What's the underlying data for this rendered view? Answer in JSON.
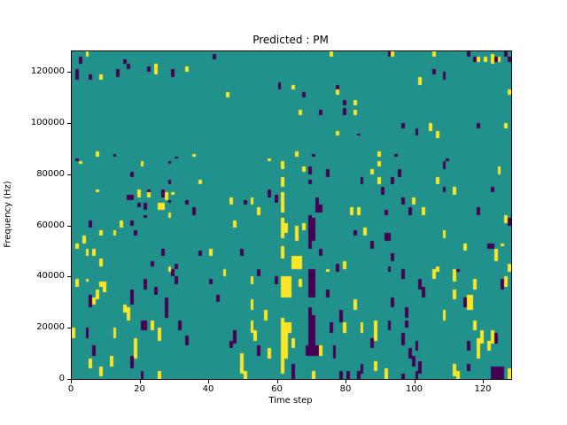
{
  "chart_data": {
    "type": "heatmap",
    "title": "Predicted : PM",
    "xlabel": "Time step",
    "ylabel": "Frequency (Hz)",
    "colormap": "viridis",
    "grid_size": [
      128,
      128
    ],
    "x_range": [
      0,
      128
    ],
    "y_range_hz": [
      0,
      128000
    ],
    "legend": "none",
    "grid": false,
    "colors": {
      "background_value": "#21918c",
      "max": "#fde725",
      "min": "#440154",
      "spine": "#000000",
      "figure_background": "#ffffff"
    },
    "cells_yellow": [
      [
        4,
        126,
        2
      ],
      [
        24,
        119,
        4
      ],
      [
        33,
        120,
        2
      ],
      [
        8,
        117,
        2
      ],
      [
        7,
        87,
        2
      ],
      [
        35,
        87,
        1
      ],
      [
        75,
        126,
        2
      ],
      [
        64,
        113,
        2
      ],
      [
        45,
        110,
        2
      ],
      [
        77,
        111,
        2
      ],
      [
        82,
        107,
        2
      ],
      [
        66,
        103,
        2
      ],
      [
        82,
        103,
        2
      ],
      [
        77,
        95,
        2
      ],
      [
        65,
        87,
        2
      ],
      [
        57,
        85,
        1
      ],
      [
        93,
        126,
        2
      ],
      [
        105,
        126,
        2
      ],
      [
        122,
        123,
        4
      ],
      [
        118,
        124,
        2
      ],
      [
        120,
        124,
        2
      ],
      [
        124,
        124,
        2
      ],
      [
        101,
        115,
        3
      ],
      [
        104,
        97,
        3
      ],
      [
        106,
        94,
        3
      ],
      [
        126,
        98,
        2
      ],
      [
        89,
        87,
        2
      ],
      [
        127,
        111,
        2
      ],
      [
        2,
        84,
        1
      ],
      [
        20,
        83,
        2
      ],
      [
        7,
        73,
        1
      ],
      [
        19,
        71,
        3
      ],
      [
        22,
        71,
        2
      ],
      [
        27,
        70,
        3
      ],
      [
        29,
        72,
        1
      ],
      [
        37,
        76,
        2
      ],
      [
        25,
        66,
        3,
        2
      ],
      [
        28,
        63,
        2
      ],
      [
        14,
        59,
        3
      ],
      [
        8,
        56,
        2
      ],
      [
        12,
        56,
        2
      ],
      [
        3,
        53,
        3
      ],
      [
        1,
        51,
        2
      ],
      [
        4,
        48,
        3
      ],
      [
        6,
        48,
        3
      ],
      [
        8,
        44,
        3
      ],
      [
        28,
        42,
        2
      ],
      [
        40,
        48,
        3
      ],
      [
        61,
        82,
        3
      ],
      [
        61,
        75,
        4
      ],
      [
        61,
        65,
        8
      ],
      [
        61,
        55,
        8
      ],
      [
        61,
        47,
        5
      ],
      [
        62,
        57,
        4
      ],
      [
        67,
        81,
        2
      ],
      [
        87,
        80,
        2
      ],
      [
        46,
        68,
        3
      ],
      [
        52,
        68,
        3
      ],
      [
        54,
        64,
        3
      ],
      [
        81,
        64,
        3
      ],
      [
        83,
        64,
        3
      ],
      [
        47,
        59,
        3
      ],
      [
        67,
        58,
        3
      ],
      [
        65,
        54,
        6
      ],
      [
        85,
        56,
        3
      ],
      [
        64,
        43,
        5,
        3
      ],
      [
        79,
        43,
        3
      ],
      [
        89,
        83,
        2
      ],
      [
        89,
        76,
        3
      ],
      [
        106,
        76,
        3
      ],
      [
        111,
        72,
        3
      ],
      [
        124,
        80,
        3
      ],
      [
        99,
        68,
        3
      ],
      [
        102,
        64,
        3
      ],
      [
        126,
        61,
        3
      ],
      [
        108,
        55,
        3
      ],
      [
        114,
        50,
        3
      ],
      [
        123,
        46,
        5
      ],
      [
        125,
        52,
        1
      ],
      [
        106,
        42,
        2
      ],
      [
        127,
        42,
        3
      ],
      [
        1,
        36,
        3
      ],
      [
        4,
        38,
        1
      ],
      [
        8,
        36,
        2
      ],
      [
        9,
        34,
        4
      ],
      [
        7,
        31,
        4
      ],
      [
        6,
        29,
        3
      ],
      [
        15,
        26,
        3
      ],
      [
        16,
        23,
        5
      ],
      [
        23,
        19,
        4
      ],
      [
        25,
        15,
        5
      ],
      [
        0,
        16,
        4
      ],
      [
        12,
        16,
        4
      ],
      [
        18,
        8,
        8
      ],
      [
        5,
        4,
        4
      ],
      [
        11,
        5,
        4
      ],
      [
        8,
        1,
        4
      ],
      [
        25,
        0,
        3
      ],
      [
        44,
        40,
        3
      ],
      [
        74,
        42,
        1
      ],
      [
        52,
        37,
        3
      ],
      [
        61,
        32,
        8,
        3
      ],
      [
        66,
        36,
        3
      ],
      [
        52,
        27,
        4
      ],
      [
        56,
        23,
        4
      ],
      [
        61,
        2,
        22
      ],
      [
        62,
        8,
        14
      ],
      [
        63,
        18,
        4
      ],
      [
        64,
        12,
        4
      ],
      [
        52,
        18,
        5
      ],
      [
        53,
        15,
        4
      ],
      [
        72,
        9,
        4
      ],
      [
        49,
        6,
        4
      ],
      [
        57,
        8,
        4
      ],
      [
        49,
        2,
        4
      ],
      [
        50,
        0,
        3
      ],
      [
        70,
        0,
        3
      ],
      [
        79,
        18,
        4
      ],
      [
        82,
        27,
        4
      ],
      [
        84,
        18,
        4
      ],
      [
        105,
        39,
        4
      ],
      [
        111,
        38,
        5
      ],
      [
        117,
        35,
        4
      ],
      [
        126,
        36,
        4
      ],
      [
        111,
        31,
        4
      ],
      [
        115,
        27,
        6,
        2
      ],
      [
        108,
        23,
        4
      ],
      [
        88,
        15,
        8
      ],
      [
        117,
        19,
        4
      ],
      [
        119,
        14,
        5
      ],
      [
        122,
        14,
        5
      ],
      [
        121,
        11,
        4
      ],
      [
        118,
        8,
        8
      ],
      [
        88,
        3,
        4
      ],
      [
        91,
        0,
        4
      ],
      [
        111,
        1,
        5
      ],
      [
        112,
        0,
        3
      ],
      [
        127,
        0,
        4
      ]
    ],
    "cells_purple": [
      [
        41,
        125,
        2
      ],
      [
        2,
        123,
        3
      ],
      [
        15,
        123,
        2
      ],
      [
        13,
        118,
        3
      ],
      [
        16,
        121,
        2
      ],
      [
        22,
        120,
        2
      ],
      [
        29,
        118,
        3
      ],
      [
        1,
        117,
        4
      ],
      [
        5,
        117,
        2
      ],
      [
        12,
        87,
        1
      ],
      [
        30,
        86,
        1
      ],
      [
        1,
        85,
        1
      ],
      [
        60,
        113,
        3
      ],
      [
        77,
        113,
        2
      ],
      [
        67,
        110,
        2
      ],
      [
        79,
        107,
        2
      ],
      [
        72,
        103,
        2
      ],
      [
        79,
        103,
        3
      ],
      [
        83,
        95,
        1
      ],
      [
        70,
        87,
        1
      ],
      [
        92,
        126,
        2
      ],
      [
        115,
        126,
        2
      ],
      [
        117,
        124,
        2
      ],
      [
        123,
        124,
        2
      ],
      [
        126,
        126,
        2
      ],
      [
        127,
        124,
        2
      ],
      [
        108,
        117,
        3
      ],
      [
        105,
        119,
        2
      ],
      [
        96,
        98,
        2
      ],
      [
        100,
        95,
        3
      ],
      [
        118,
        98,
        2
      ],
      [
        94,
        87,
        1
      ],
      [
        109,
        85,
        1
      ],
      [
        28,
        84,
        1
      ],
      [
        17,
        79,
        2
      ],
      [
        16,
        70,
        2,
        2
      ],
      [
        22,
        73,
        1
      ],
      [
        26,
        71,
        3
      ],
      [
        28,
        76,
        2
      ],
      [
        28,
        69,
        1
      ],
      [
        19,
        67,
        2
      ],
      [
        21,
        66,
        3
      ],
      [
        33,
        68,
        2
      ],
      [
        35,
        64,
        3
      ],
      [
        21,
        63,
        1
      ],
      [
        5,
        59,
        3
      ],
      [
        17,
        60,
        2
      ],
      [
        18,
        56,
        2
      ],
      [
        26,
        48,
        3
      ],
      [
        23,
        44,
        2
      ],
      [
        30,
        43,
        2
      ],
      [
        37,
        48,
        2
      ],
      [
        69,
        80,
        3
      ],
      [
        74,
        79,
        3
      ],
      [
        69,
        76,
        2
      ],
      [
        84,
        76,
        3
      ],
      [
        57,
        71,
        3
      ],
      [
        59,
        69,
        3
      ],
      [
        50,
        68,
        2
      ],
      [
        71,
        68,
        3
      ],
      [
        71,
        65,
        3,
        2
      ],
      [
        69,
        51,
        13
      ],
      [
        70,
        54,
        9
      ],
      [
        82,
        56,
        2
      ],
      [
        49,
        48,
        3
      ],
      [
        72,
        48,
        3
      ],
      [
        77,
        42,
        3
      ],
      [
        95,
        79,
        3
      ],
      [
        93,
        76,
        3
      ],
      [
        108,
        82,
        3
      ],
      [
        90,
        72,
        3
      ],
      [
        108,
        73,
        2
      ],
      [
        122,
        73,
        2
      ],
      [
        96,
        68,
        3
      ],
      [
        98,
        64,
        3
      ],
      [
        91,
        64,
        2
      ],
      [
        118,
        64,
        3
      ],
      [
        91,
        54,
        3,
        2
      ],
      [
        87,
        51,
        3
      ],
      [
        121,
        51,
        2
      ],
      [
        122,
        51,
        2
      ],
      [
        127,
        60,
        3
      ],
      [
        93,
        46,
        3
      ],
      [
        92,
        42,
        2
      ],
      [
        112,
        42,
        1
      ],
      [
        29,
        40,
        3
      ],
      [
        21,
        35,
        4
      ],
      [
        30,
        37,
        3
      ],
      [
        40,
        37,
        2
      ],
      [
        5,
        28,
        5
      ],
      [
        24,
        33,
        3
      ],
      [
        27,
        24,
        8
      ],
      [
        42,
        30,
        3
      ],
      [
        17,
        29,
        6
      ],
      [
        20,
        19,
        4,
        2
      ],
      [
        31,
        19,
        4
      ],
      [
        33,
        13,
        4
      ],
      [
        4,
        16,
        4
      ],
      [
        6,
        9,
        4
      ],
      [
        17,
        4,
        5
      ],
      [
        20,
        0,
        3
      ],
      [
        54,
        40,
        3
      ],
      [
        59,
        37,
        3
      ],
      [
        69,
        32,
        11,
        2
      ],
      [
        74,
        32,
        3
      ],
      [
        47,
        14,
        5
      ],
      [
        46,
        12,
        3
      ],
      [
        54,
        9,
        4
      ],
      [
        69,
        12,
        16
      ],
      [
        70,
        12,
        13
      ],
      [
        68,
        9,
        4,
        4
      ],
      [
        76,
        8,
        5
      ],
      [
        75,
        18,
        4
      ],
      [
        78,
        22,
        5
      ],
      [
        64,
        2,
        4
      ],
      [
        64,
        0,
        2
      ],
      [
        78,
        0,
        3
      ],
      [
        80,
        0,
        3
      ],
      [
        83,
        0,
        3
      ],
      [
        84,
        2,
        4
      ],
      [
        96,
        39,
        4
      ],
      [
        101,
        35,
        4
      ],
      [
        102,
        32,
        4
      ],
      [
        125,
        35,
        4
      ],
      [
        93,
        28,
        4
      ],
      [
        97,
        24,
        4
      ],
      [
        114,
        28,
        4
      ],
      [
        92,
        19,
        4
      ],
      [
        87,
        12,
        4
      ],
      [
        96,
        13,
        5
      ],
      [
        97,
        20,
        3
      ],
      [
        100,
        11,
        4
      ],
      [
        98,
        8,
        4
      ],
      [
        123,
        14,
        4
      ],
      [
        115,
        11,
        4
      ],
      [
        115,
        3,
        3
      ],
      [
        99,
        5,
        4
      ],
      [
        101,
        2,
        5
      ],
      [
        100,
        0,
        3
      ],
      [
        122,
        0,
        5,
        4
      ],
      [
        96,
        0,
        2
      ]
    ]
  },
  "axes": {
    "x": {
      "label": "Time step",
      "range": [
        0,
        128
      ],
      "ticks": [
        {
          "value": 0,
          "label": "0"
        },
        {
          "value": 20,
          "label": "20"
        },
        {
          "value": 40,
          "label": "40"
        },
        {
          "value": 60,
          "label": "60"
        },
        {
          "value": 80,
          "label": "80"
        },
        {
          "value": 100,
          "label": "100"
        },
        {
          "value": 120,
          "label": "120"
        }
      ]
    },
    "y": {
      "label": "Frequency (Hz)",
      "range": [
        0,
        128000
      ],
      "ticks": [
        {
          "value": 0,
          "label": "0"
        },
        {
          "value": 20000,
          "label": "20000"
        },
        {
          "value": 40000,
          "label": "40000"
        },
        {
          "value": 60000,
          "label": "60000"
        },
        {
          "value": 80000,
          "label": "80000"
        },
        {
          "value": 100000,
          "label": "100000"
        },
        {
          "value": 120000,
          "label": "120000"
        }
      ]
    }
  }
}
